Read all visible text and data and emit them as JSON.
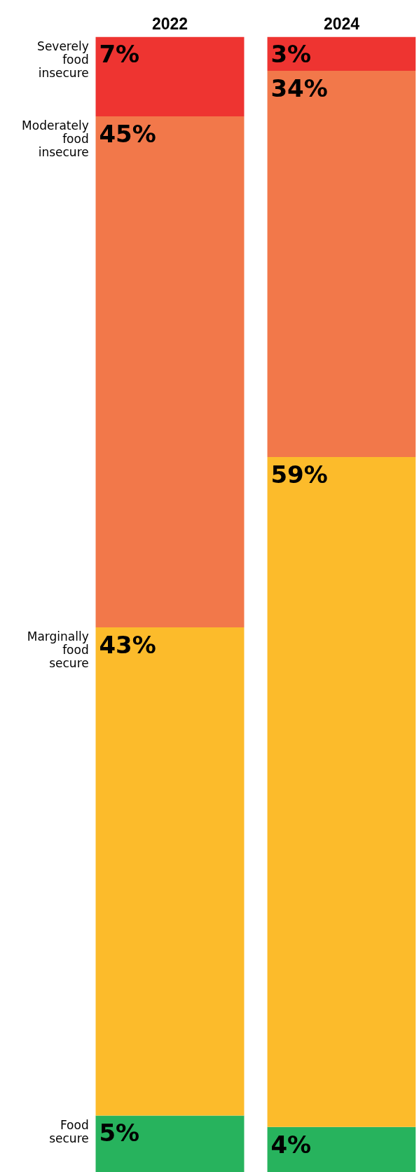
{
  "chart_data": {
    "type": "bar",
    "stacked": true,
    "categories": [
      "2022",
      "2024"
    ],
    "series": [
      {
        "name": "Food secure",
        "color": "#27b35d",
        "values": [
          5,
          4
        ],
        "value_labels": [
          "5%",
          "4%"
        ]
      },
      {
        "name": "Marginally food secure",
        "color": "#fcbb2b",
        "values": [
          43,
          59
        ],
        "value_labels": [
          "43%",
          "59%"
        ]
      },
      {
        "name": "Moderately food insecure",
        "color": "#f2784a",
        "values": [
          45,
          34
        ],
        "value_labels": [
          "45%",
          "34%"
        ]
      },
      {
        "name": "Severely food insecure",
        "color": "#ee3431",
        "values": [
          7,
          3
        ],
        "value_labels": [
          "7%",
          "3%"
        ]
      }
    ],
    "ylim": [
      0,
      100
    ],
    "tick_labels": "x",
    "grid": false,
    "legend": false
  }
}
